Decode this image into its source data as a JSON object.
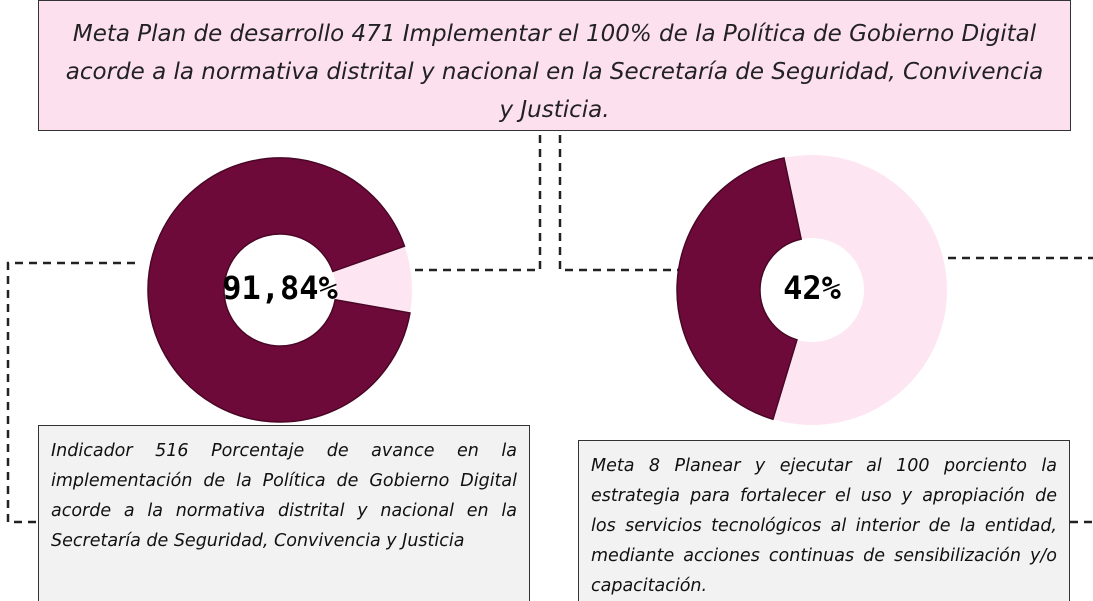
{
  "header": {
    "lines": [
      "Meta Plan de desarrollo  471 Implementar el 100% de la Política de Gobierno Digital",
      "acorde a la normativa distrital y nacional en la Secretaría de Seguridad,     Convivencia",
      "y Justicia."
    ]
  },
  "chart_data": [
    {
      "type": "donut",
      "values": [
        91.84
      ],
      "value_labels": [
        "91,84%"
      ],
      "color": "#6e0a3a",
      "rest_color": "#fde6f2"
    },
    {
      "type": "donut",
      "values": [
        42
      ],
      "value_labels": [
        "42%"
      ],
      "color": "#6e0a3a",
      "rest_color": "#fde6f2"
    }
  ],
  "boxes": [
    {
      "lines": [
        "Indicador 516 Porcentaje de avance en la",
        "implementación de la Política de Gobierno Digital",
        "acorde a la normativa distrital y nacional en la",
        "Secretaría de Seguridad, Convivencia y Justicia"
      ]
    },
    {
      "lines": [
        "Meta 8 Planear y ejecutar al 100 porciento la",
        "estrategia para fortalecer el uso y apropiación de",
        "los servicios tecnológicos al interior de la entidad,",
        "mediante acciones continuas de sensibilización y/o",
        "capacitación."
      ]
    }
  ]
}
